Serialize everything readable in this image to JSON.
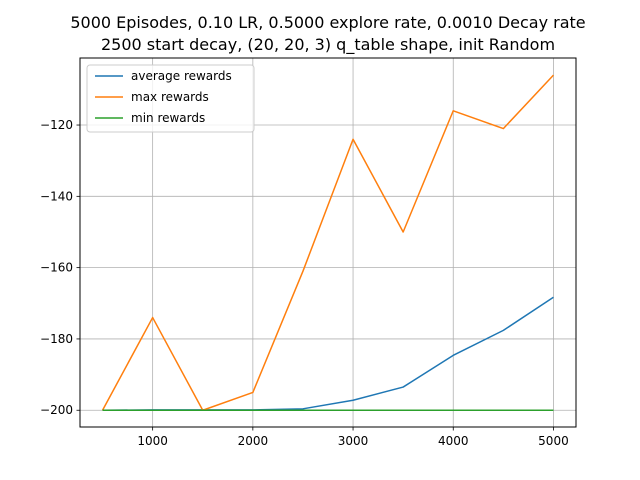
{
  "chart_data": {
    "type": "line",
    "title_line1": "5000 Episodes, 0.10 LR, 0.5000 explore rate, 0.0010 Decay rate",
    "title_line2": "2500 start decay, (20, 20, 3) q_table shape, init Random",
    "xlabel": "",
    "ylabel": "",
    "x": [
      500,
      1000,
      1500,
      2000,
      2500,
      3000,
      3500,
      4000,
      4500,
      5000
    ],
    "xlim": [
      275,
      5225
    ],
    "ylim": [
      -204.7,
      -101.2
    ],
    "xticks": [
      1000,
      2000,
      3000,
      4000,
      5000
    ],
    "yticks": [
      -200,
      -180,
      -160,
      -140,
      -120
    ],
    "xtick_labels": [
      "1000",
      "2000",
      "3000",
      "4000",
      "5000"
    ],
    "ytick_labels": [
      "−200",
      "−180",
      "−160",
      "−140",
      "−120"
    ],
    "grid": true,
    "legend_position": "top-left",
    "series": [
      {
        "name": "average rewards",
        "color": "#1f77b4",
        "values": [
          -200.0,
          -199.9,
          -199.9,
          -199.9,
          -199.6,
          -197.2,
          -193.5,
          -184.6,
          -177.6,
          -168.3
        ]
      },
      {
        "name": "max rewards",
        "color": "#ff7f0e",
        "values": [
          -200,
          -174,
          -200,
          -195,
          -161,
          -124,
          -150,
          -116,
          -121,
          -106
        ]
      },
      {
        "name": "min rewards",
        "color": "#2ca02c",
        "values": [
          -200,
          -200,
          -200,
          -200,
          -200,
          -200,
          -200,
          -200,
          -200,
          -200
        ]
      }
    ]
  }
}
